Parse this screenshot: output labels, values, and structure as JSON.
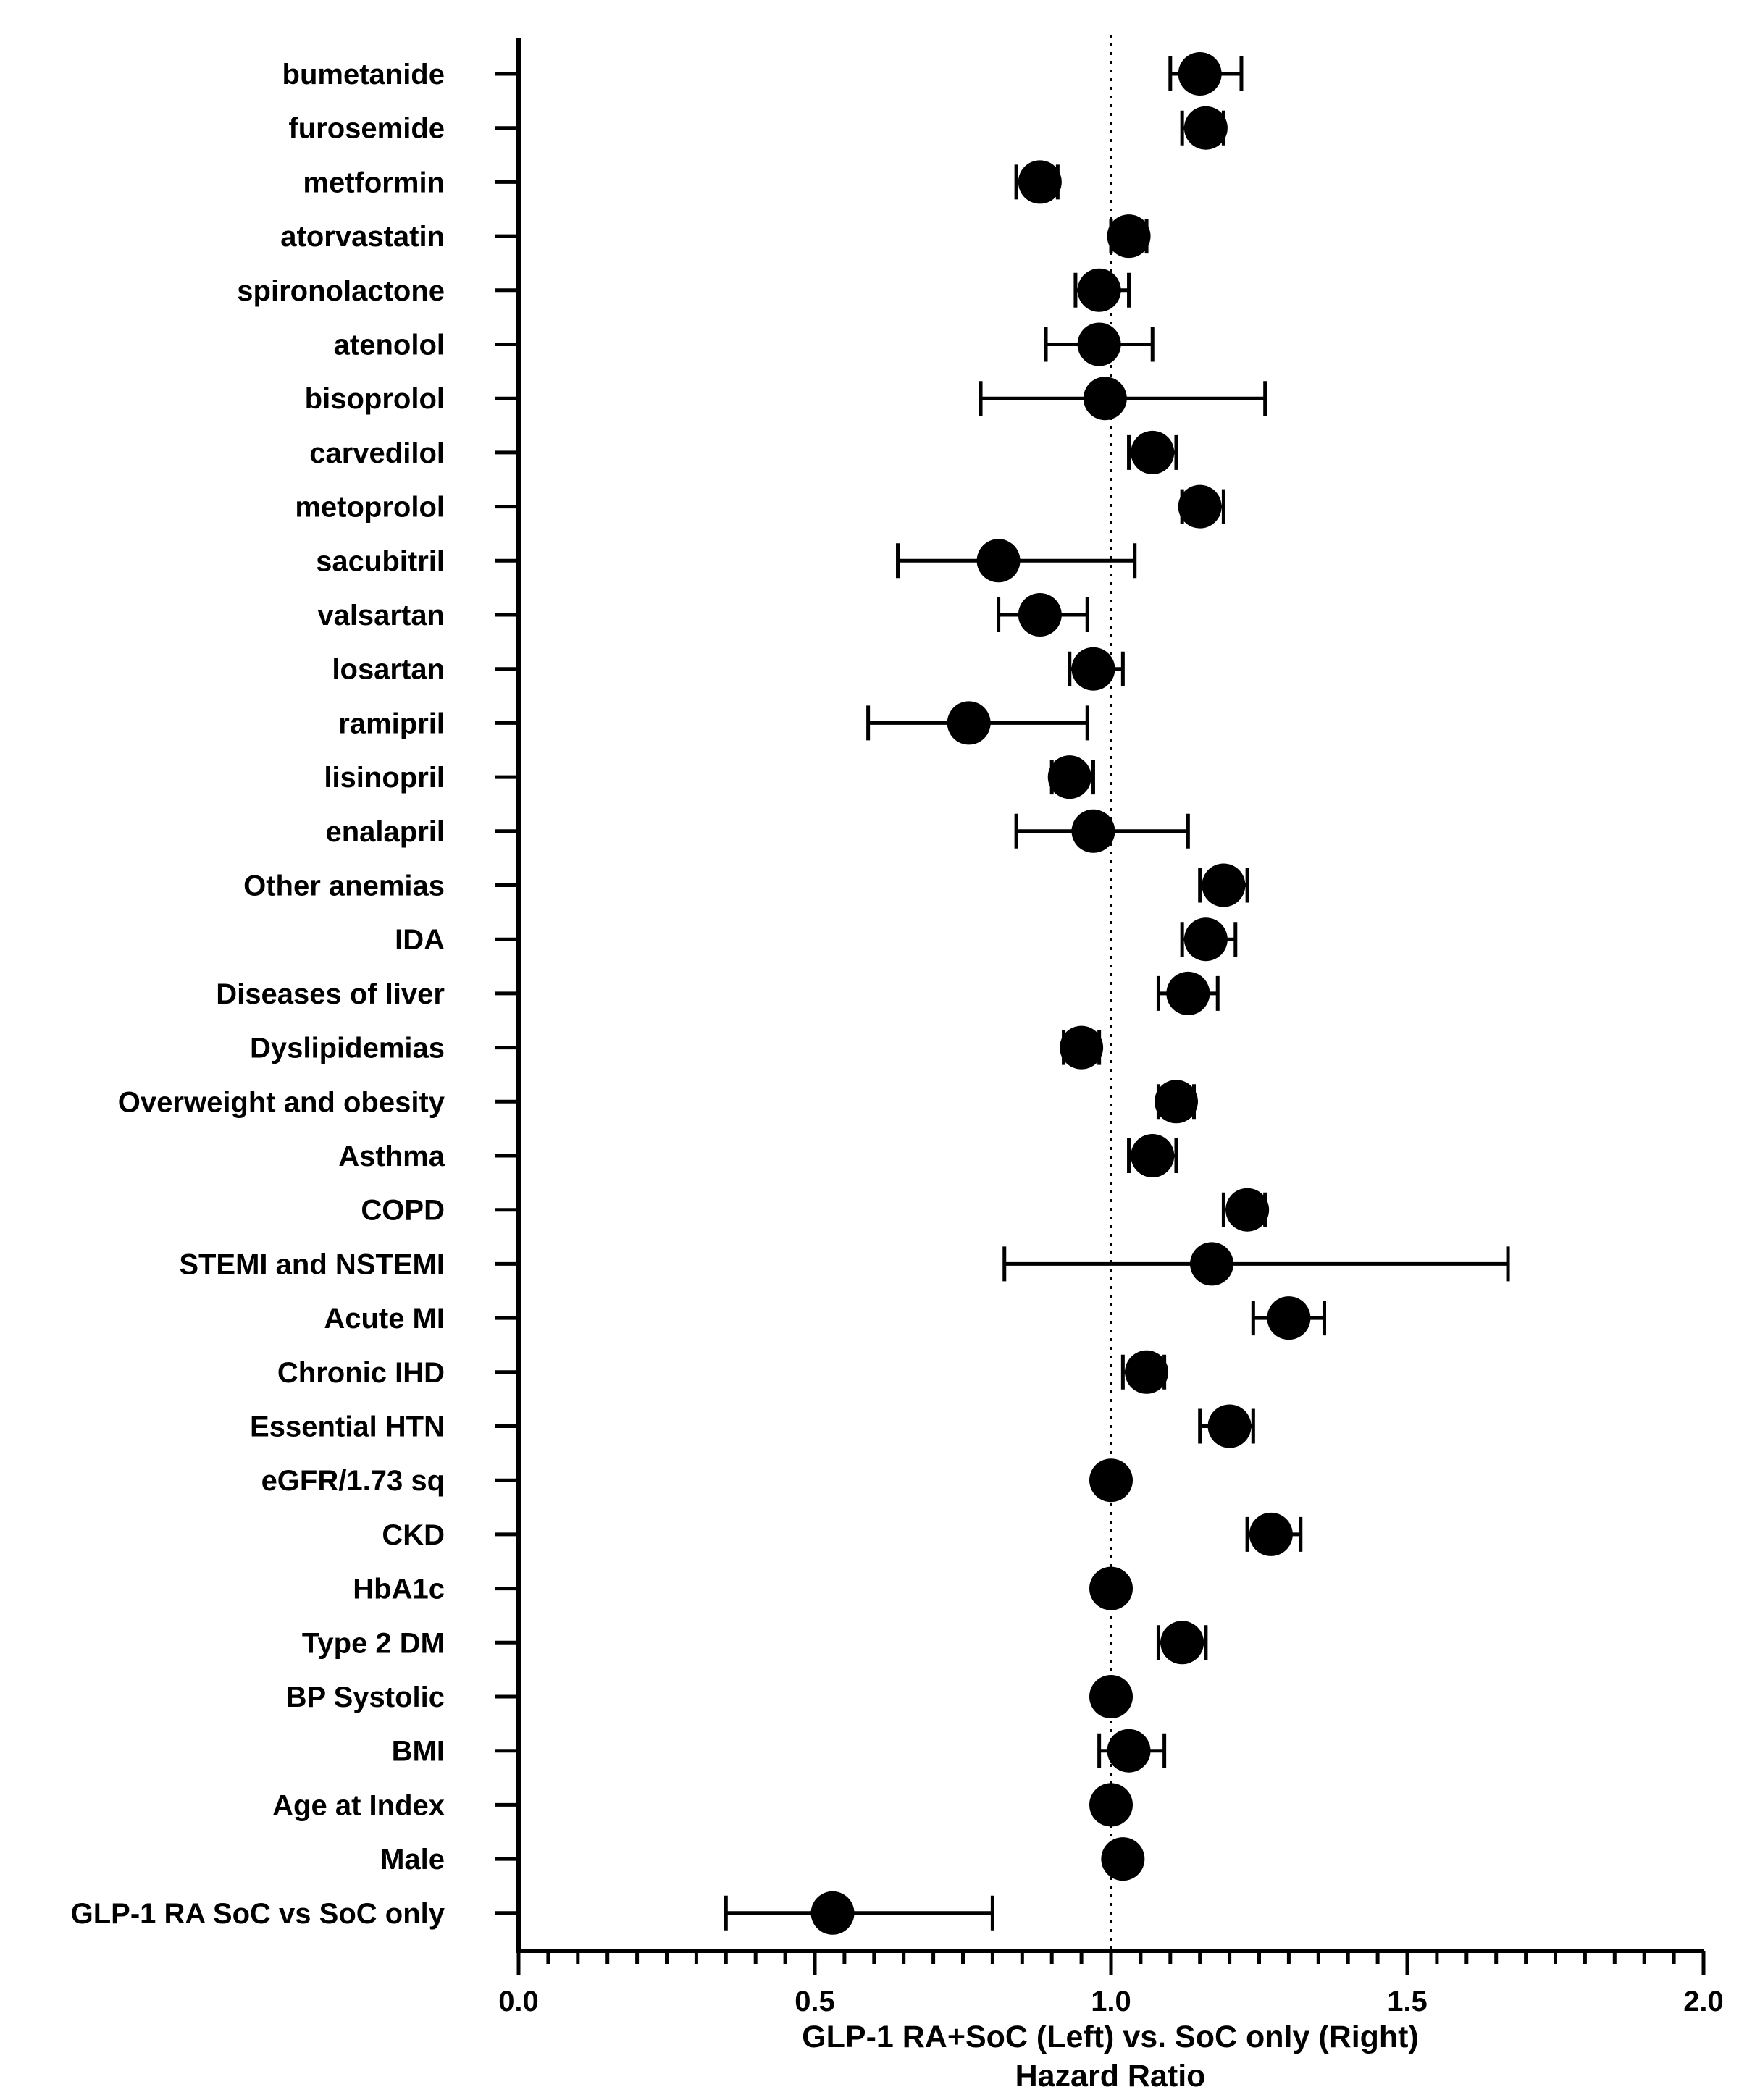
{
  "chart_data": {
    "type": "forest",
    "title": "",
    "xlabel_line1": "GLP-1 RA+SoC (Left) vs. SoC only (Right)",
    "xlabel_line2": "Hazard Ratio",
    "xlim": [
      0.0,
      2.0
    ],
    "x_major_ticks": [
      0.0,
      0.5,
      1.0,
      1.5,
      2.0
    ],
    "x_tick_labels": [
      "0.0",
      "0.5",
      "1.0",
      "1.5",
      "2.0"
    ],
    "x_minor_step": 0.05,
    "reference_line": 1.0,
    "rows": [
      {
        "label": "bumetanide",
        "hr": 1.15,
        "lo": 1.1,
        "hi": 1.22
      },
      {
        "label": "furosemide",
        "hr": 1.16,
        "lo": 1.12,
        "hi": 1.19
      },
      {
        "label": "metformin",
        "hr": 0.88,
        "lo": 0.84,
        "hi": 0.91
      },
      {
        "label": "atorvastatin",
        "hr": 1.03,
        "lo": 1.0,
        "hi": 1.06
      },
      {
        "label": "spironolactone",
        "hr": 0.98,
        "lo": 0.94,
        "hi": 1.03
      },
      {
        "label": "atenolol",
        "hr": 0.98,
        "lo": 0.89,
        "hi": 1.07
      },
      {
        "label": "bisoprolol",
        "hr": 0.99,
        "lo": 0.78,
        "hi": 1.26
      },
      {
        "label": "carvedilol",
        "hr": 1.07,
        "lo": 1.03,
        "hi": 1.11
      },
      {
        "label": "metoprolol",
        "hr": 1.15,
        "lo": 1.12,
        "hi": 1.19
      },
      {
        "label": "sacubitril",
        "hr": 0.81,
        "lo": 0.64,
        "hi": 1.04
      },
      {
        "label": "valsartan",
        "hr": 0.88,
        "lo": 0.81,
        "hi": 0.96
      },
      {
        "label": "losartan",
        "hr": 0.97,
        "lo": 0.93,
        "hi": 1.02
      },
      {
        "label": "ramipril",
        "hr": 0.76,
        "lo": 0.59,
        "hi": 0.96
      },
      {
        "label": "lisinopril",
        "hr": 0.93,
        "lo": 0.9,
        "hi": 0.97
      },
      {
        "label": "enalapril",
        "hr": 0.97,
        "lo": 0.84,
        "hi": 1.13
      },
      {
        "label": "Other anemias",
        "hr": 1.19,
        "lo": 1.15,
        "hi": 1.23
      },
      {
        "label": "IDA",
        "hr": 1.16,
        "lo": 1.12,
        "hi": 1.21
      },
      {
        "label": "Diseases of liver",
        "hr": 1.13,
        "lo": 1.08,
        "hi": 1.18
      },
      {
        "label": "Dyslipidemias",
        "hr": 0.95,
        "lo": 0.92,
        "hi": 0.98
      },
      {
        "label": "Overweight and obesity",
        "hr": 1.11,
        "lo": 1.08,
        "hi": 1.14
      },
      {
        "label": "Asthma",
        "hr": 1.07,
        "lo": 1.03,
        "hi": 1.11
      },
      {
        "label": "COPD",
        "hr": 1.23,
        "lo": 1.19,
        "hi": 1.26
      },
      {
        "label": "STEMI and NSTEMI",
        "hr": 1.17,
        "lo": 0.82,
        "hi": 1.67
      },
      {
        "label": "Acute MI",
        "hr": 1.3,
        "lo": 1.24,
        "hi": 1.36
      },
      {
        "label": "Chronic IHD",
        "hr": 1.06,
        "lo": 1.02,
        "hi": 1.09
      },
      {
        "label": "Essential HTN",
        "hr": 1.2,
        "lo": 1.15,
        "hi": 1.24
      },
      {
        "label": "eGFR/1.73 sq",
        "hr": 1.0,
        "lo": 0.99,
        "hi": 1.01
      },
      {
        "label": "CKD",
        "hr": 1.27,
        "lo": 1.23,
        "hi": 1.32
      },
      {
        "label": "HbA1c",
        "hr": 1.0,
        "lo": 0.99,
        "hi": 1.01
      },
      {
        "label": "Type 2 DM",
        "hr": 1.12,
        "lo": 1.08,
        "hi": 1.16
      },
      {
        "label": "BP Systolic",
        "hr": 1.0,
        "lo": 0.99,
        "hi": 1.01
      },
      {
        "label": "BMI",
        "hr": 1.03,
        "lo": 0.98,
        "hi": 1.09
      },
      {
        "label": "Age at Index",
        "hr": 1.0,
        "lo": 0.99,
        "hi": 1.01
      },
      {
        "label": "Male",
        "hr": 1.02,
        "lo": 1.01,
        "hi": 1.03
      },
      {
        "label": "GLP-1 RA SoC vs SoC only",
        "hr": 0.53,
        "lo": 0.35,
        "hi": 0.8
      }
    ]
  }
}
